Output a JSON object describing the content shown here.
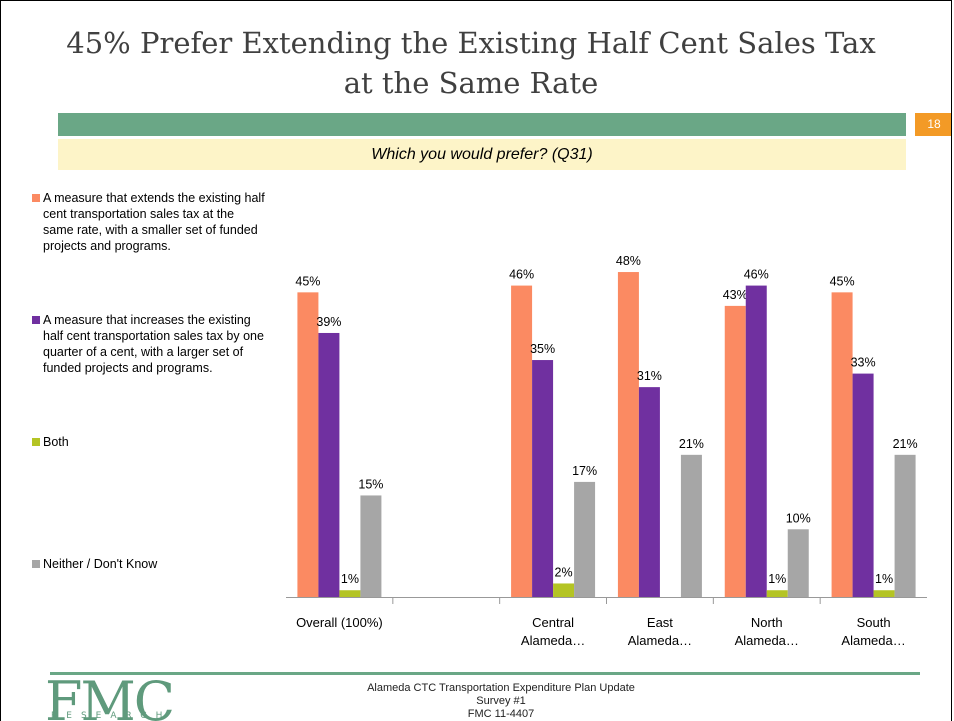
{
  "slide": {
    "title": "45% Prefer Extending the Existing Half Cent Sales Tax at the Same Rate",
    "number": "18",
    "question": "Which you would prefer? (Q31)"
  },
  "legend": [
    {
      "label": "A measure that extends the existing half cent transportation sales tax at the same rate, with a smaller set of funded projects and programs.",
      "color": "#fb8a62"
    },
    {
      "label": "A measure that increases the existing half cent transportation sales tax by one quarter of a cent, with a larger set of funded projects and programs.",
      "color": "#7030a0"
    },
    {
      "label": "Both",
      "color": "#b4c424"
    },
    {
      "label": "Neither / Don't Know",
      "color": "#a6a6a6"
    }
  ],
  "chart_data": {
    "type": "bar",
    "categories": [
      "Overall (100%)",
      "",
      "Central Alameda…",
      "East Alameda…",
      "North Alameda…",
      "South Alameda…"
    ],
    "category_lines": [
      [
        "Overall (100%)"
      ],
      [],
      [
        "Central",
        "Alameda…"
      ],
      [
        "East",
        "Alameda…"
      ],
      [
        "North",
        "Alameda…"
      ],
      [
        "South",
        "Alameda…"
      ]
    ],
    "series": [
      {
        "name": "A measure that extends the existing half cent transportation sales tax at the same rate, with a smaller set of funded projects and programs.",
        "color": "#fb8a62",
        "values": [
          45,
          null,
          46,
          48,
          43,
          45
        ]
      },
      {
        "name": "A measure that increases the existing half cent transportation sales tax by one quarter of a cent, with a larger set of funded projects and programs.",
        "color": "#7030a0",
        "values": [
          39,
          null,
          35,
          31,
          46,
          33
        ]
      },
      {
        "name": "Both",
        "color": "#b4c424",
        "values": [
          1,
          null,
          2,
          0,
          1,
          1
        ]
      },
      {
        "name": "Neither / Don't Know",
        "color": "#a6a6a6",
        "values": [
          15,
          null,
          17,
          21,
          10,
          21
        ]
      }
    ],
    "labels": [
      [
        "45%",
        "39%",
        "1%",
        "15%"
      ],
      [
        null,
        null,
        null,
        null
      ],
      [
        "46%",
        "35%",
        "2%",
        "17%"
      ],
      [
        "48%",
        "31%",
        null,
        "21%"
      ],
      [
        "43%",
        "46%",
        "1%",
        "10%"
      ],
      [
        "45%",
        "33%",
        "1%",
        "21%"
      ]
    ],
    "ylim": [
      0,
      50
    ],
    "legend_position": "left",
    "grid": false
  },
  "footer": {
    "logo_big": "FMC",
    "logo_small": "RESEARCH",
    "lines": [
      "Alameda CTC Transportation Expenditure Plan Update",
      "Survey #1",
      "FMC 11-4407"
    ]
  }
}
